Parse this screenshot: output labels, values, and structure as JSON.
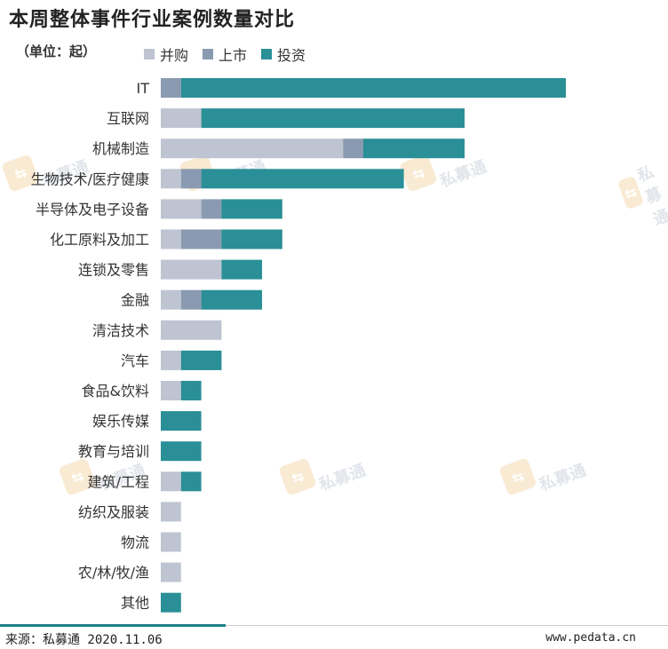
{
  "title": "本周整体事件行业案例数量对比",
  "unit": "（单位：起）",
  "footer": {
    "source": "来源：私募通 2020.11.06",
    "site": "www.pedata.cn"
  },
  "watermark": {
    "text": "私募通",
    "icon": "pedata-logo-icon"
  },
  "colors": {
    "merger": "#bec4d1",
    "ipo": "#8a9ab1",
    "investment": "#2a8f96"
  },
  "chart_data": {
    "type": "bar",
    "orientation": "horizontal",
    "stacked": true,
    "categories": [
      "IT",
      "互联网",
      "机械制造",
      "生物技术/医疗健康",
      "半导体及电子设备",
      "化工原料及加工",
      "连锁及零售",
      "金融",
      "清洁技术",
      "汽车",
      "食品&饮料",
      "娱乐传媒",
      "教育与培训",
      "建筑/工程",
      "纺织及服装",
      "物流",
      "农/林/牧/渔",
      "其他"
    ],
    "series": [
      {
        "name": "并购",
        "color": "#bec4d1",
        "values": [
          0,
          2,
          9,
          1,
          2,
          1,
          3,
          1,
          3,
          1,
          1,
          0,
          0,
          1,
          1,
          1,
          1,
          0
        ]
      },
      {
        "name": "上市",
        "color": "#8a9ab1",
        "values": [
          1,
          0,
          1,
          1,
          1,
          2,
          0,
          1,
          0,
          0,
          0,
          0,
          0,
          0,
          0,
          0,
          0,
          0
        ]
      },
      {
        "name": "投资",
        "color": "#2a8f96",
        "values": [
          19,
          13,
          5,
          10,
          3,
          3,
          2,
          3,
          0,
          2,
          1,
          2,
          2,
          1,
          0,
          0,
          0,
          1
        ]
      }
    ],
    "xlim": [
      0,
      20
    ],
    "legend": "top-left",
    "grid": false
  }
}
